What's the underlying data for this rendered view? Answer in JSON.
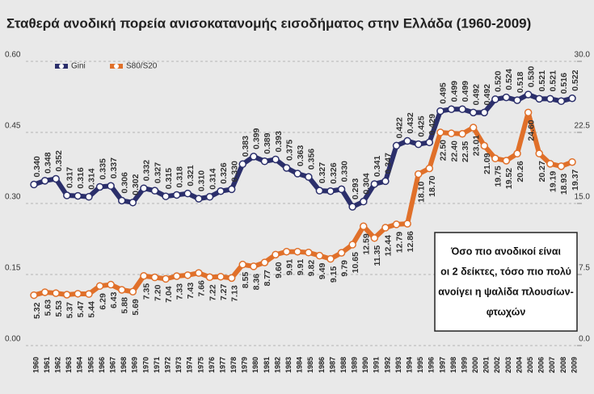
{
  "chart_data": {
    "type": "line",
    "title": "Σταθερά ανοδική πορεία ανισοκατανομής εισοδήματος στην Ελλάδα (1960-2009)",
    "categories": [
      "1960",
      "1961",
      "1962",
      "1963",
      "1964",
      "1965",
      "1966",
      "1967",
      "1968",
      "1969",
      "1970",
      "1971",
      "1972",
      "1973",
      "1974",
      "1975",
      "1976",
      "1977",
      "1978",
      "1979",
      "1980",
      "1981",
      "1982",
      "1983",
      "1984",
      "1985",
      "1986",
      "1987",
      "1988",
      "1989",
      "1990",
      "1991",
      "1992",
      "1993",
      "1994",
      "1995",
      "1996",
      "1997",
      "1998",
      "1999",
      "2000",
      "2001",
      "2002",
      "2003",
      "2004",
      "2005",
      "2006",
      "2007",
      "2008",
      "2009"
    ],
    "series": [
      {
        "name": "Gini",
        "color": "#2b2f6b",
        "axis": "y",
        "values": [
          0.34,
          0.348,
          0.352,
          0.317,
          0.316,
          0.314,
          0.335,
          0.337,
          0.306,
          0.302,
          0.332,
          0.327,
          0.315,
          0.318,
          0.321,
          0.31,
          0.314,
          0.326,
          0.33,
          0.383,
          0.399,
          0.389,
          0.393,
          0.375,
          0.363,
          0.356,
          0.327,
          0.326,
          0.33,
          0.293,
          0.304,
          0.341,
          0.347,
          0.422,
          0.432,
          0.425,
          0.429,
          0.495,
          0.499,
          0.499,
          0.492,
          0.492,
          0.52,
          0.524,
          0.518,
          0.53,
          0.521,
          0.521,
          0.516,
          0.522
        ],
        "value_labels": [
          "0.340",
          "0.348",
          "0.352",
          "0.317",
          "0.316",
          "0.314",
          "0.335",
          "0.337",
          "0.306",
          "0.302",
          "0.332",
          "0.327",
          "0.315",
          "0.318",
          "0.321",
          "0.310",
          "0.314",
          "0.326",
          "0.330",
          "0.383",
          "0.399",
          "0.389",
          "0.393",
          "0.375",
          "0.363",
          "0.356",
          "0.327",
          "0.326",
          "0.330",
          "0.293",
          "0.304",
          "0.341",
          "0.347",
          "0.422",
          "0.432",
          "0.425",
          "0.429",
          "0.495",
          "0.499",
          "0.499",
          "0.492",
          "0.492",
          "0.520",
          "0.524",
          "0.518",
          "0.530",
          "0.521",
          "0.521",
          "0.516",
          "0.522"
        ]
      },
      {
        "name": "S80/S20",
        "color": "#e0702a",
        "axis": "y2",
        "values": [
          5.32,
          5.63,
          5.53,
          5.37,
          5.47,
          5.44,
          6.29,
          6.43,
          5.88,
          5.69,
          7.35,
          7.2,
          7.04,
          7.33,
          7.43,
          7.66,
          7.22,
          7.27,
          7.13,
          8.55,
          8.36,
          8.77,
          9.6,
          9.91,
          9.91,
          9.82,
          9.49,
          9.15,
          9.79,
          10.65,
          12.59,
          11.35,
          12.44,
          12.79,
          12.86,
          18.1,
          18.7,
          22.5,
          22.4,
          22.35,
          23.01,
          21.09,
          19.75,
          19.52,
          20.26,
          24.6,
          20.27,
          19.19,
          18.93,
          19.37
        ],
        "value_labels": [
          "5.32",
          "5.63",
          "5.53",
          "5.37",
          "5.47",
          "5.44",
          "6.29",
          "6.43",
          "5.88",
          "5.69",
          "7.35",
          "7.20",
          "7.04",
          "7.33",
          "7.43",
          "7.66",
          "7.22",
          "7.27",
          "7.13",
          "8.55",
          "8.36",
          "8.77",
          "9.60",
          "9.91",
          "9.91",
          "9.82",
          "9.49",
          "9.15",
          "9.79",
          "10.65",
          "12.59",
          "11.35",
          "12.44",
          "12.79",
          "12.86",
          "18.10",
          "18.70",
          "22.50",
          "22.40",
          "22.35",
          "23.01",
          "21.09",
          "19.75",
          "19.52",
          "20.26",
          "24.60",
          "20.27",
          "19.19",
          "18.93",
          "19.37"
        ]
      }
    ],
    "ylim": [
      0,
      0.6
    ],
    "yticks": [
      {
        "value": 0,
        "label": "0.00"
      },
      0.15,
      {
        "value": 0.3,
        "label": "0.30"
      },
      0.45,
      {
        "value": 0.6,
        "label": "0.60"
      }
    ],
    "y2lim": [
      0,
      30
    ],
    "y2ticks": [
      {
        "value": 0,
        "label": "0.0"
      },
      7.5,
      {
        "value": 15,
        "label": "15.0"
      },
      22.5,
      {
        "value": 30,
        "label": "30.0"
      }
    ],
    "grid": true,
    "legend": "top-left",
    "annotation": [
      "Όσο πιο ανοδικοί είναι",
      "οι 2 δείκτες, τόσο πιο πολύ",
      "ανοίγει η ψαλίδα πλουσίων-",
      "φτωχών"
    ]
  }
}
